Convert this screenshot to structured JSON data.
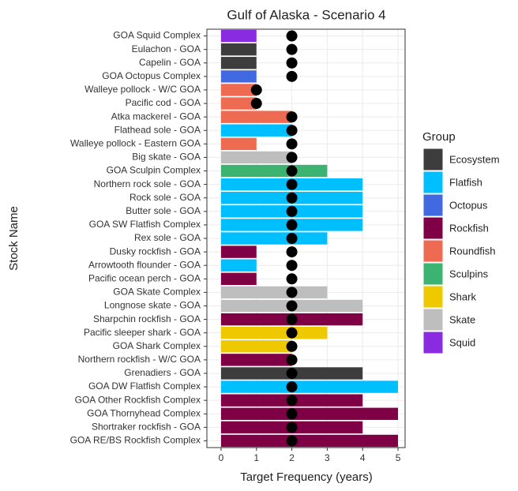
{
  "chart_data": {
    "type": "bar",
    "orientation": "horizontal",
    "title": "Gulf of Alaska - Scenario 4",
    "x_label": "Target Frequency (years)",
    "y_label": "Stock Name",
    "categories": [
      "GOA Squid Complex",
      "Eulachon - GOA",
      "Capelin - GOA",
      "GOA Octopus Complex",
      "Walleye pollock - W/C GOA",
      "Pacific cod - GOA",
      "Atka mackerel - GOA",
      "Flathead sole - GOA",
      "Walleye pollock - Eastern GOA",
      "Big skate - GOA",
      "GOA Sculpin Complex",
      "Northern rock sole - GOA",
      "Rock sole - GOA",
      "Butter sole - GOA",
      "GOA SW Flatfish Complex",
      "Rex sole - GOA",
      "Dusky rockfish - GOA",
      "Arrowtooth flounder - GOA",
      "Pacific ocean perch - GOA",
      "GOA Skate Complex",
      "Longnose skate - GOA",
      "Sharpchin rockfish - GOA",
      "Pacific sleeper shark - GOA",
      "GOA Shark Complex",
      "Northern rockfish - W/C GOA",
      "Grenadiers - GOA",
      "GOA DW Flatfish Complex",
      "GOA Other Rockfish Complex",
      "GOA Thornyhead Complex",
      "Shortraker rockfish - GOA",
      "GOA RE/BS Rockfish Complex"
    ],
    "values": [
      1,
      1,
      1,
      1,
      1,
      1,
      2,
      2,
      1,
      2,
      3,
      4,
      4,
      4,
      4,
      3,
      1,
      1,
      1,
      3,
      4,
      4,
      3,
      2,
      2,
      4,
      5,
      4,
      5,
      4,
      5
    ],
    "points": [
      2,
      2,
      2,
      2,
      1,
      1,
      2,
      2,
      2,
      2,
      2,
      2,
      2,
      2,
      2,
      2,
      2,
      2,
      2,
      2,
      2,
      2,
      2,
      2,
      2,
      2,
      2,
      2,
      2,
      2,
      2
    ],
    "bar_groups": [
      "Squid",
      "Ecosystem",
      "Ecosystem",
      "Octopus",
      "Roundfish",
      "Roundfish",
      "Roundfish",
      "Flatfish",
      "Roundfish",
      "Skate",
      "Sculpins",
      "Flatfish",
      "Flatfish",
      "Flatfish",
      "Flatfish",
      "Flatfish",
      "Rockfish",
      "Flatfish",
      "Rockfish",
      "Skate",
      "Skate",
      "Rockfish",
      "Shark",
      "Shark",
      "Rockfish",
      "Ecosystem",
      "Flatfish",
      "Rockfish",
      "Rockfish",
      "Rockfish",
      "Rockfish"
    ],
    "point_color": "#000000",
    "legend_title": "Group",
    "legend": [
      {
        "name": "Ecosystem",
        "color": "#3d3d3d"
      },
      {
        "name": "Flatfish",
        "color": "#00bfff"
      },
      {
        "name": "Octopus",
        "color": "#4169e1"
      },
      {
        "name": "Rockfish",
        "color": "#800046"
      },
      {
        "name": "Roundfish",
        "color": "#ee6a50"
      },
      {
        "name": "Sculpins",
        "color": "#3cb371"
      },
      {
        "name": "Shark",
        "color": "#eec900"
      },
      {
        "name": "Skate",
        "color": "#bebebe"
      },
      {
        "name": "Squid",
        "color": "#8a2be2"
      }
    ],
    "legend_position": "right",
    "xlim": [
      -0.4,
      5.2
    ],
    "xticks": [
      0,
      1,
      2,
      3,
      4,
      5
    ],
    "grid": true
  }
}
